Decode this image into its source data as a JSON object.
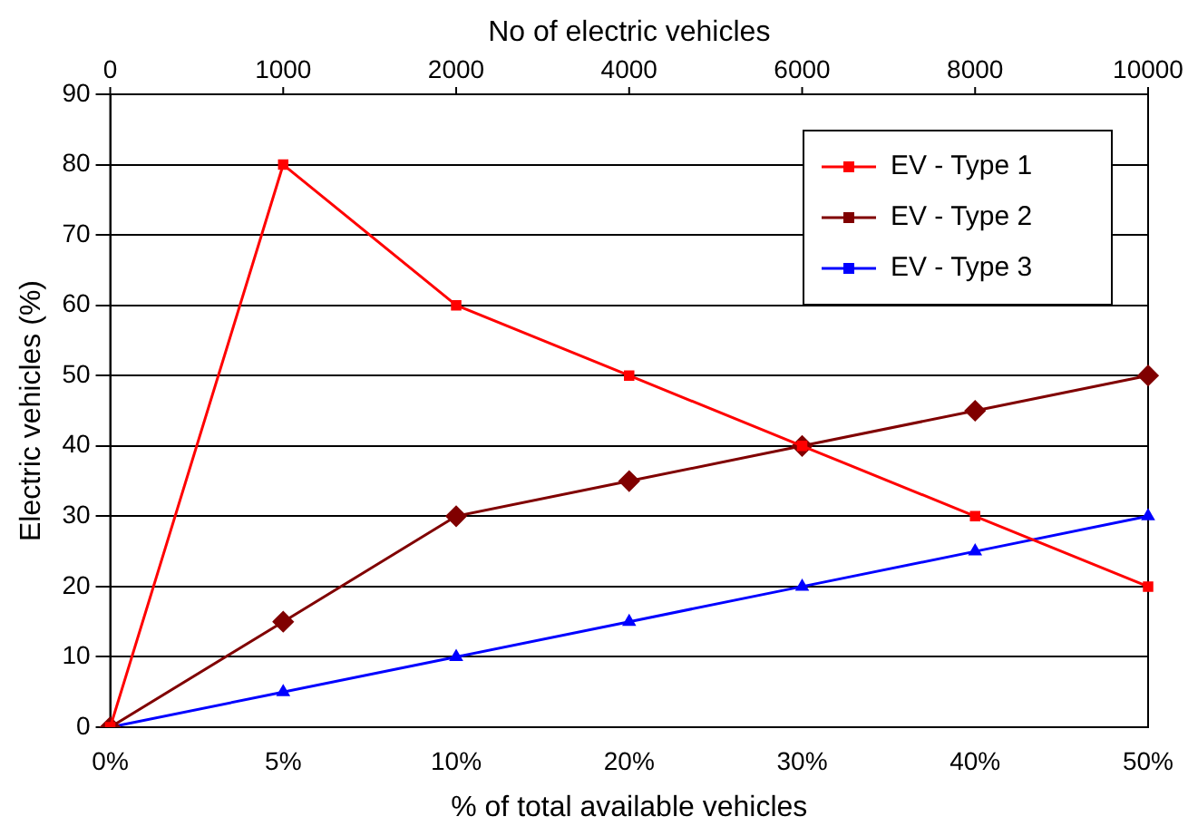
{
  "chart_data": {
    "type": "line",
    "xlabel": "% of total available vehicles",
    "ylabel": "Electric vehicles (%)",
    "x2label": "No of electric vehicles",
    "categories": [
      "0%",
      "5%",
      "10%",
      "20%",
      "30%",
      "40%",
      "50%"
    ],
    "annotations": [
      "0",
      "1000",
      "2000",
      "4000",
      "6000",
      "8000",
      "10000"
    ],
    "ylim": [
      0,
      90
    ],
    "yticks": [
      0,
      10,
      20,
      30,
      40,
      50,
      60,
      70,
      80,
      90
    ],
    "grid": "y",
    "legend": "top right",
    "series": [
      {
        "name": "EV - Type 1",
        "color": "#ff0000",
        "marker": "square",
        "values": [
          0,
          80,
          60,
          50,
          40,
          30,
          20
        ]
      },
      {
        "name": "EV - Type 2",
        "color": "#800000",
        "marker": "diamond",
        "values": [
          0,
          15,
          30,
          35,
          40,
          45,
          50
        ]
      },
      {
        "name": "EV - Type 3",
        "color": "#0000ff",
        "marker": "triangle",
        "values": [
          0,
          5,
          10,
          15,
          20,
          25,
          30
        ]
      }
    ]
  }
}
